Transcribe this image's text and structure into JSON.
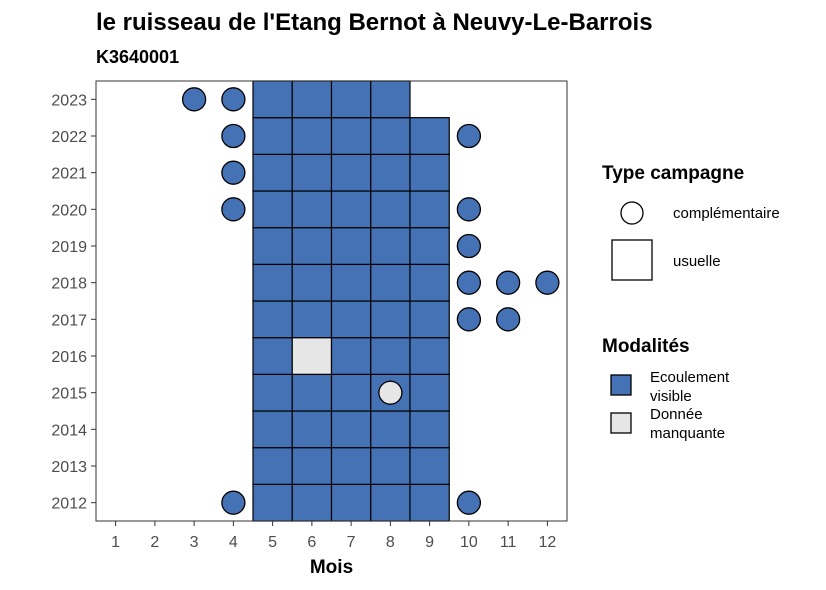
{
  "chart_data": {
    "type": "heatmap",
    "title": "le ruisseau de l'Etang Bernot à Neuvy-Le-Barrois",
    "subtitle": "K3640001",
    "xlabel": "Mois",
    "ylabel": "",
    "x_ticks": [
      "1",
      "2",
      "3",
      "4",
      "5",
      "6",
      "7",
      "8",
      "9",
      "10",
      "11",
      "12"
    ],
    "y_ticks": [
      "2012",
      "2013",
      "2014",
      "2015",
      "2016",
      "2017",
      "2018",
      "2019",
      "2020",
      "2021",
      "2022",
      "2023"
    ],
    "xlim": [
      0.5,
      12.5
    ],
    "ylim": [
      2011.5,
      2023.5
    ],
    "grid": false,
    "legend_position": "right",
    "legends": {
      "type_campagne": {
        "title": "Type campagne",
        "items": [
          {
            "label": "complémentaire",
            "shape": "circle"
          },
          {
            "label": "usuelle",
            "shape": "square"
          }
        ]
      },
      "modalites": {
        "title": "Modalités",
        "items": [
          {
            "label": "Ecoulement visible",
            "color": "#4572B4"
          },
          {
            "label": "Donnée manquante",
            "color": "#E6E6E6"
          }
        ]
      }
    },
    "colors": {
      "Ecoulement visible": "#4572B4",
      "Donnée manquante": "#E6E6E6"
    },
    "points": [
      {
        "year": 2012,
        "month": 4,
        "type": "complémentaire",
        "modalite": "Ecoulement visible"
      },
      {
        "year": 2012,
        "month": 5,
        "type": "usuelle",
        "modalite": "Ecoulement visible"
      },
      {
        "year": 2012,
        "month": 6,
        "type": "usuelle",
        "modalite": "Ecoulement visible"
      },
      {
        "year": 2012,
        "month": 7,
        "type": "usuelle",
        "modalite": "Ecoulement visible"
      },
      {
        "year": 2012,
        "month": 8,
        "type": "usuelle",
        "modalite": "Ecoulement visible"
      },
      {
        "year": 2012,
        "month": 9,
        "type": "usuelle",
        "modalite": "Ecoulement visible"
      },
      {
        "year": 2012,
        "month": 10,
        "type": "complémentaire",
        "modalite": "Ecoulement visible"
      },
      {
        "year": 2013,
        "month": 5,
        "type": "usuelle",
        "modalite": "Ecoulement visible"
      },
      {
        "year": 2013,
        "month": 6,
        "type": "usuelle",
        "modalite": "Ecoulement visible"
      },
      {
        "year": 2013,
        "month": 7,
        "type": "usuelle",
        "modalite": "Ecoulement visible"
      },
      {
        "year": 2013,
        "month": 8,
        "type": "usuelle",
        "modalite": "Ecoulement visible"
      },
      {
        "year": 2013,
        "month": 9,
        "type": "usuelle",
        "modalite": "Ecoulement visible"
      },
      {
        "year": 2014,
        "month": 5,
        "type": "usuelle",
        "modalite": "Ecoulement visible"
      },
      {
        "year": 2014,
        "month": 6,
        "type": "usuelle",
        "modalite": "Ecoulement visible"
      },
      {
        "year": 2014,
        "month": 7,
        "type": "usuelle",
        "modalite": "Ecoulement visible"
      },
      {
        "year": 2014,
        "month": 8,
        "type": "usuelle",
        "modalite": "Ecoulement visible"
      },
      {
        "year": 2014,
        "month": 9,
        "type": "usuelle",
        "modalite": "Ecoulement visible"
      },
      {
        "year": 2015,
        "month": 5,
        "type": "usuelle",
        "modalite": "Ecoulement visible"
      },
      {
        "year": 2015,
        "month": 6,
        "type": "usuelle",
        "modalite": "Ecoulement visible"
      },
      {
        "year": 2015,
        "month": 7,
        "type": "usuelle",
        "modalite": "Ecoulement visible"
      },
      {
        "year": 2015,
        "month": 8,
        "type": "usuelle",
        "modalite": "Ecoulement visible"
      },
      {
        "year": 2015,
        "month": 8,
        "type": "complémentaire",
        "modalite": "Donnée manquante"
      },
      {
        "year": 2015,
        "month": 9,
        "type": "usuelle",
        "modalite": "Ecoulement visible"
      },
      {
        "year": 2016,
        "month": 5,
        "type": "usuelle",
        "modalite": "Ecoulement visible"
      },
      {
        "year": 2016,
        "month": 6,
        "type": "usuelle",
        "modalite": "Donnée manquante"
      },
      {
        "year": 2016,
        "month": 7,
        "type": "usuelle",
        "modalite": "Ecoulement visible"
      },
      {
        "year": 2016,
        "month": 8,
        "type": "usuelle",
        "modalite": "Ecoulement visible"
      },
      {
        "year": 2016,
        "month": 9,
        "type": "usuelle",
        "modalite": "Ecoulement visible"
      },
      {
        "year": 2017,
        "month": 5,
        "type": "usuelle",
        "modalite": "Ecoulement visible"
      },
      {
        "year": 2017,
        "month": 6,
        "type": "usuelle",
        "modalite": "Ecoulement visible"
      },
      {
        "year": 2017,
        "month": 7,
        "type": "usuelle",
        "modalite": "Ecoulement visible"
      },
      {
        "year": 2017,
        "month": 8,
        "type": "usuelle",
        "modalite": "Ecoulement visible"
      },
      {
        "year": 2017,
        "month": 9,
        "type": "usuelle",
        "modalite": "Ecoulement visible"
      },
      {
        "year": 2017,
        "month": 10,
        "type": "complémentaire",
        "modalite": "Ecoulement visible"
      },
      {
        "year": 2017,
        "month": 11,
        "type": "complémentaire",
        "modalite": "Ecoulement visible"
      },
      {
        "year": 2018,
        "month": 5,
        "type": "usuelle",
        "modalite": "Ecoulement visible"
      },
      {
        "year": 2018,
        "month": 6,
        "type": "usuelle",
        "modalite": "Ecoulement visible"
      },
      {
        "year": 2018,
        "month": 7,
        "type": "usuelle",
        "modalite": "Ecoulement visible"
      },
      {
        "year": 2018,
        "month": 8,
        "type": "usuelle",
        "modalite": "Ecoulement visible"
      },
      {
        "year": 2018,
        "month": 9,
        "type": "usuelle",
        "modalite": "Ecoulement visible"
      },
      {
        "year": 2018,
        "month": 10,
        "type": "complémentaire",
        "modalite": "Ecoulement visible"
      },
      {
        "year": 2018,
        "month": 11,
        "type": "complémentaire",
        "modalite": "Ecoulement visible"
      },
      {
        "year": 2018,
        "month": 12,
        "type": "complémentaire",
        "modalite": "Ecoulement visible"
      },
      {
        "year": 2019,
        "month": 5,
        "type": "usuelle",
        "modalite": "Ecoulement visible"
      },
      {
        "year": 2019,
        "month": 6,
        "type": "usuelle",
        "modalite": "Ecoulement visible"
      },
      {
        "year": 2019,
        "month": 7,
        "type": "usuelle",
        "modalite": "Ecoulement visible"
      },
      {
        "year": 2019,
        "month": 8,
        "type": "usuelle",
        "modalite": "Ecoulement visible"
      },
      {
        "year": 2019,
        "month": 9,
        "type": "usuelle",
        "modalite": "Ecoulement visible"
      },
      {
        "year": 2019,
        "month": 10,
        "type": "complémentaire",
        "modalite": "Ecoulement visible"
      },
      {
        "year": 2020,
        "month": 4,
        "type": "complémentaire",
        "modalite": "Ecoulement visible"
      },
      {
        "year": 2020,
        "month": 5,
        "type": "usuelle",
        "modalite": "Ecoulement visible"
      },
      {
        "year": 2020,
        "month": 6,
        "type": "usuelle",
        "modalite": "Ecoulement visible"
      },
      {
        "year": 2020,
        "month": 7,
        "type": "usuelle",
        "modalite": "Ecoulement visible"
      },
      {
        "year": 2020,
        "month": 8,
        "type": "usuelle",
        "modalite": "Ecoulement visible"
      },
      {
        "year": 2020,
        "month": 9,
        "type": "usuelle",
        "modalite": "Ecoulement visible"
      },
      {
        "year": 2020,
        "month": 10,
        "type": "complémentaire",
        "modalite": "Ecoulement visible"
      },
      {
        "year": 2021,
        "month": 4,
        "type": "complémentaire",
        "modalite": "Ecoulement visible"
      },
      {
        "year": 2021,
        "month": 5,
        "type": "usuelle",
        "modalite": "Ecoulement visible"
      },
      {
        "year": 2021,
        "month": 6,
        "type": "usuelle",
        "modalite": "Ecoulement visible"
      },
      {
        "year": 2021,
        "month": 7,
        "type": "usuelle",
        "modalite": "Ecoulement visible"
      },
      {
        "year": 2021,
        "month": 8,
        "type": "usuelle",
        "modalite": "Ecoulement visible"
      },
      {
        "year": 2021,
        "month": 9,
        "type": "usuelle",
        "modalite": "Ecoulement visible"
      },
      {
        "year": 2022,
        "month": 4,
        "type": "complémentaire",
        "modalite": "Ecoulement visible"
      },
      {
        "year": 2022,
        "month": 5,
        "type": "usuelle",
        "modalite": "Ecoulement visible"
      },
      {
        "year": 2022,
        "month": 6,
        "type": "usuelle",
        "modalite": "Ecoulement visible"
      },
      {
        "year": 2022,
        "month": 7,
        "type": "usuelle",
        "modalite": "Ecoulement visible"
      },
      {
        "year": 2022,
        "month": 8,
        "type": "usuelle",
        "modalite": "Ecoulement visible"
      },
      {
        "year": 2022,
        "month": 9,
        "type": "usuelle",
        "modalite": "Ecoulement visible"
      },
      {
        "year": 2022,
        "month": 10,
        "type": "complémentaire",
        "modalite": "Ecoulement visible"
      },
      {
        "year": 2023,
        "month": 3,
        "type": "complémentaire",
        "modalite": "Ecoulement visible"
      },
      {
        "year": 2023,
        "month": 4,
        "type": "complémentaire",
        "modalite": "Ecoulement visible"
      },
      {
        "year": 2023,
        "month": 5,
        "type": "usuelle",
        "modalite": "Ecoulement visible"
      },
      {
        "year": 2023,
        "month": 6,
        "type": "usuelle",
        "modalite": "Ecoulement visible"
      },
      {
        "year": 2023,
        "month": 7,
        "type": "usuelle",
        "modalite": "Ecoulement visible"
      },
      {
        "year": 2023,
        "month": 8,
        "type": "usuelle",
        "modalite": "Ecoulement visible"
      }
    ]
  }
}
